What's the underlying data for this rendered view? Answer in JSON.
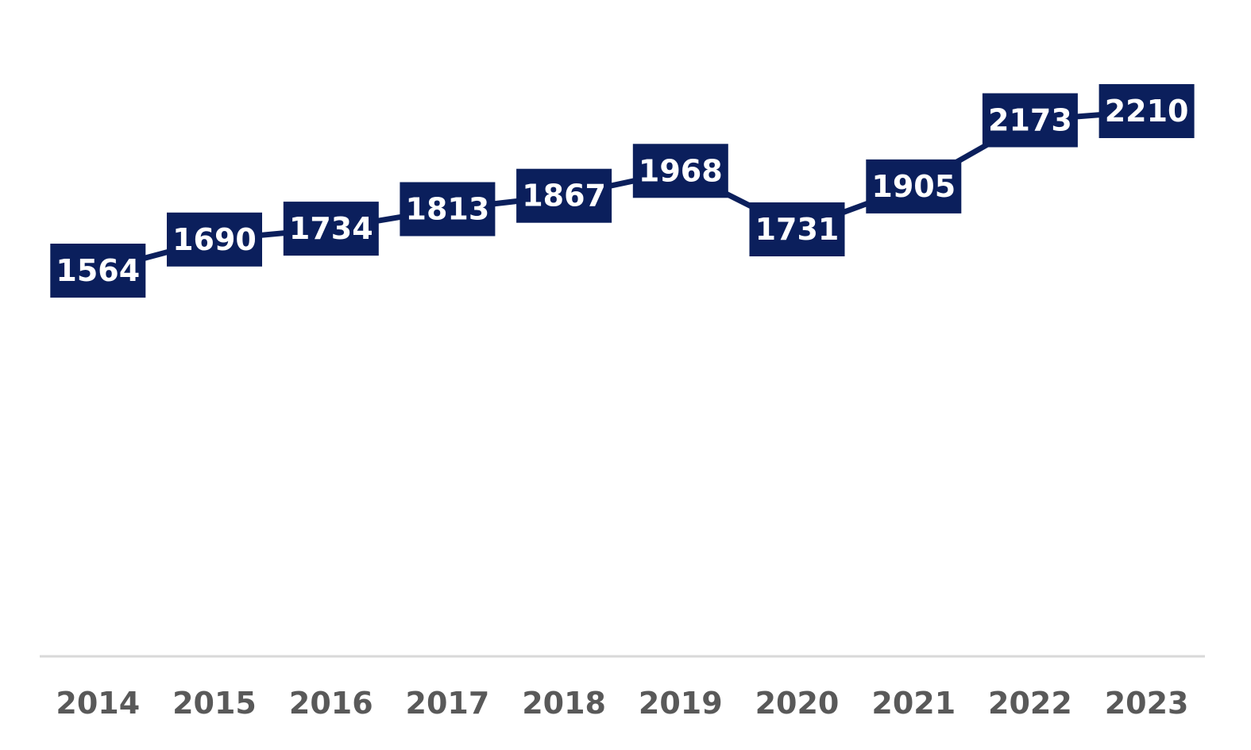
{
  "chart_data": {
    "type": "line",
    "title": "",
    "xlabel": "",
    "ylabel": "",
    "categories": [
      "2014",
      "2015",
      "2016",
      "2017",
      "2018",
      "2019",
      "2020",
      "2021",
      "2022",
      "2023"
    ],
    "series": [
      {
        "values": [
          1564,
          1690,
          1734,
          1813,
          1867,
          1968,
          1731,
          1905,
          2173,
          2210
        ],
        "color": "#0b1f5c"
      }
    ],
    "data_labels": true,
    "y_axis_visible": false,
    "grid": false,
    "legend": "none",
    "colors": {
      "series": "#0b1f5c",
      "label_text": "#ffffff",
      "axis_line": "#d9d9d9",
      "tick_text": "#595959"
    }
  }
}
